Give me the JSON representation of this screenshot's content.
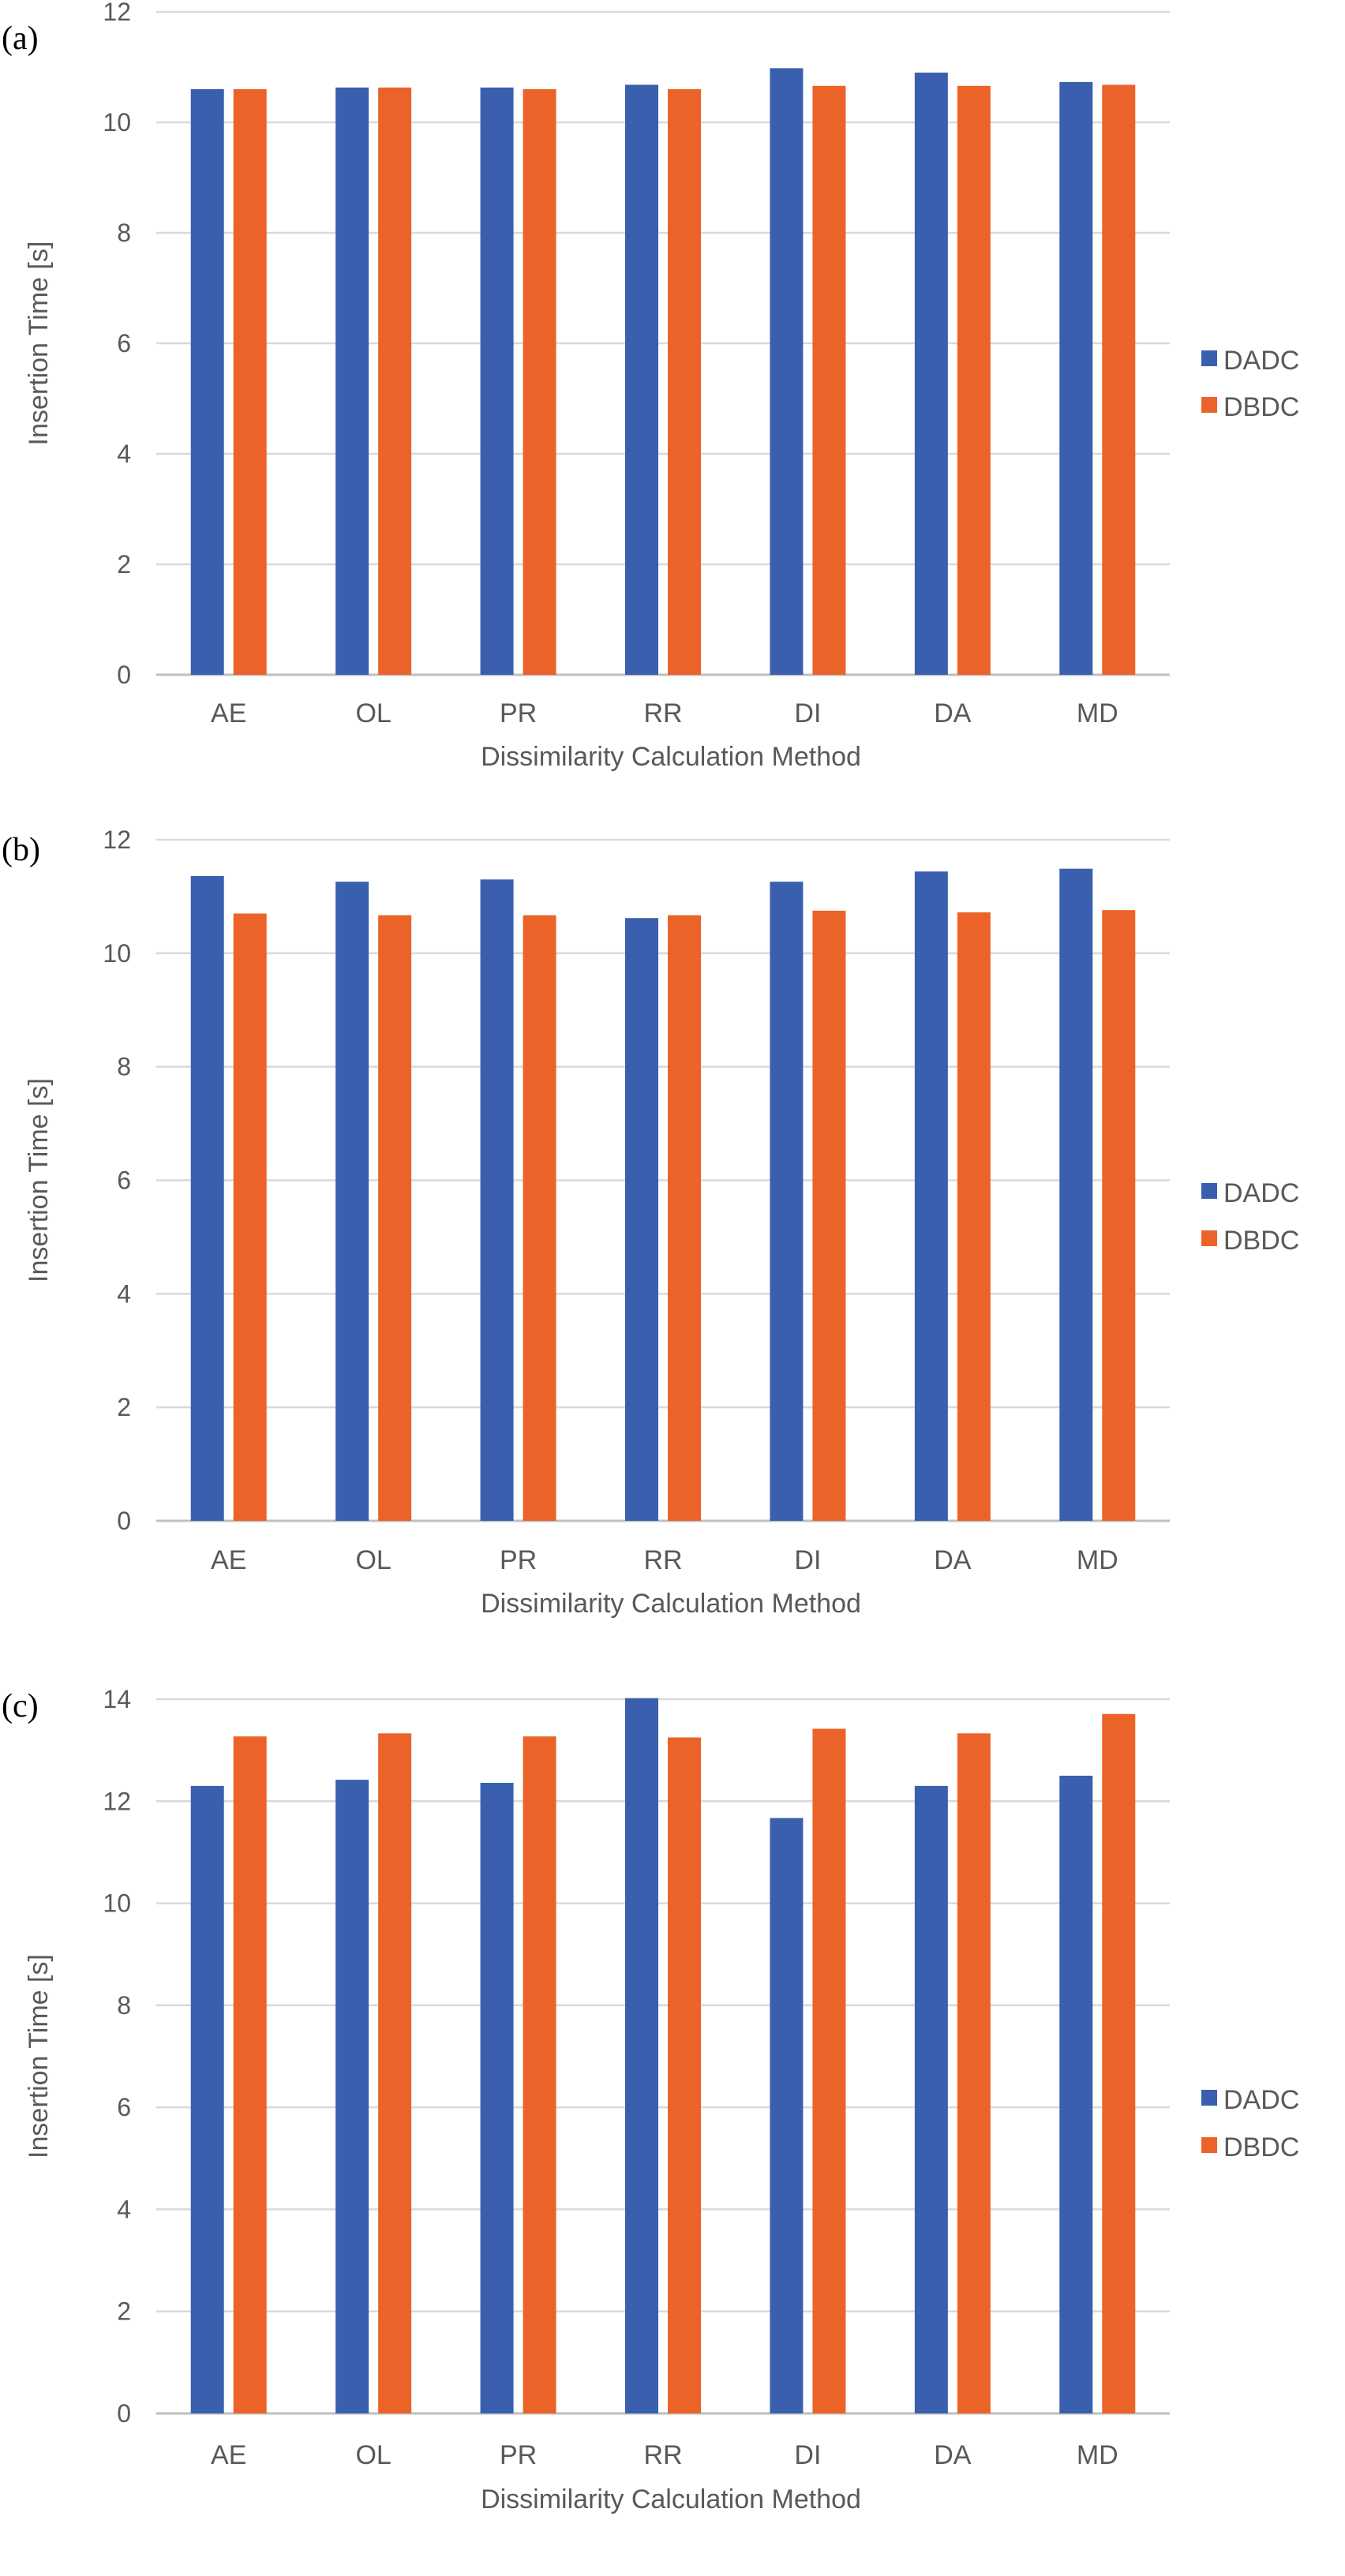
{
  "colors": {
    "DADC": "#3a5fae",
    "DBDC": "#eb6328",
    "grid": "#d9d9d9",
    "axis": "#bfbfbf",
    "text": "#595959"
  },
  "chart_data": [
    {
      "type": "bar",
      "panel_label": "(a)",
      "categories": [
        "AE",
        "OL",
        "PR",
        "RR",
        "DI",
        "DA",
        "MD"
      ],
      "series": [
        {
          "name": "DADC",
          "values": [
            10.6,
            10.63,
            10.63,
            10.68,
            10.98,
            10.9,
            10.73
          ]
        },
        {
          "name": "DBDC",
          "values": [
            10.6,
            10.63,
            10.6,
            10.6,
            10.66,
            10.66,
            10.68
          ]
        }
      ],
      "xlabel": "Dissimilarity Calculation Method",
      "ylabel": "Insertion Time [s]",
      "ylim": [
        0,
        12
      ],
      "yticks": [
        0,
        2,
        4,
        6,
        8,
        10,
        12
      ],
      "grid": true,
      "legend": "right"
    },
    {
      "type": "bar",
      "panel_label": "(b)",
      "categories": [
        "AE",
        "OL",
        "PR",
        "RR",
        "DI",
        "DA",
        "MD"
      ],
      "series": [
        {
          "name": "DADC",
          "values": [
            11.36,
            11.26,
            11.3,
            10.62,
            11.26,
            11.44,
            11.49
          ]
        },
        {
          "name": "DBDC",
          "values": [
            10.7,
            10.67,
            10.67,
            10.67,
            10.75,
            10.72,
            10.76
          ]
        }
      ],
      "xlabel": "Dissimilarity Calculation Method",
      "ylabel": "Insertion Time [s]",
      "ylim": [
        0,
        12
      ],
      "yticks": [
        0,
        2,
        4,
        6,
        8,
        10,
        12
      ],
      "grid": true,
      "legend": "right"
    },
    {
      "type": "bar",
      "panel_label": "(c)",
      "categories": [
        "AE",
        "OL",
        "PR",
        "RR",
        "DI",
        "DA",
        "MD"
      ],
      "series": [
        {
          "name": "DADC",
          "values": [
            12.3,
            12.42,
            12.36,
            14.02,
            11.67,
            12.3,
            12.5
          ]
        },
        {
          "name": "DBDC",
          "values": [
            13.27,
            13.33,
            13.27,
            13.25,
            13.42,
            13.33,
            13.71
          ]
        }
      ],
      "xlabel": "Dissimilarity Calculation Method",
      "ylabel": "Insertion Time [s]",
      "ylim": [
        0,
        14
      ],
      "yticks": [
        0,
        2,
        4,
        6,
        8,
        10,
        12,
        14
      ],
      "grid": true,
      "legend": "right"
    }
  ]
}
